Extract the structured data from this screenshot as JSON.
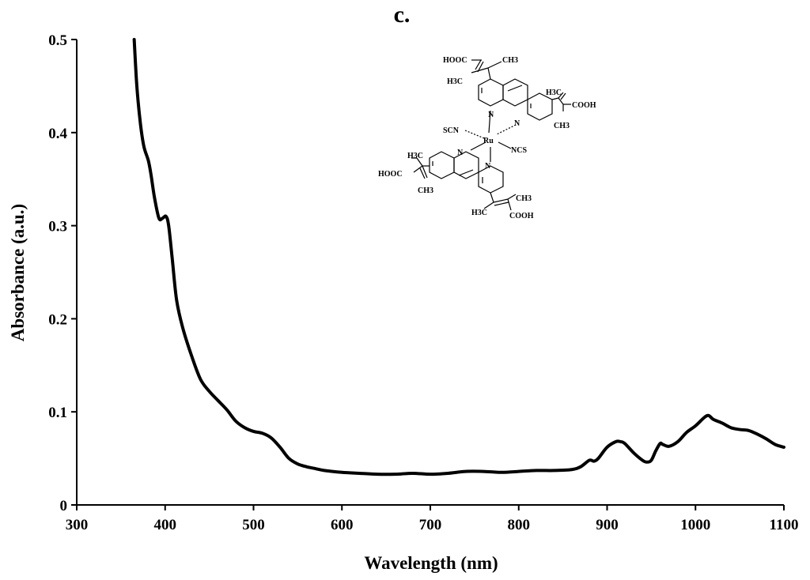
{
  "panel_label": "c.",
  "chart_data": {
    "type": "line",
    "title": "",
    "xlabel": "Wavelength (nm)",
    "ylabel": "Absorbance (a.u.)",
    "xlim": [
      300,
      1100
    ],
    "ylim": [
      0,
      0.5
    ],
    "x_ticks": [
      300,
      400,
      500,
      600,
      700,
      800,
      900,
      1000,
      1100
    ],
    "y_ticks": [
      0,
      0.1,
      0.2,
      0.3,
      0.4,
      0.5
    ],
    "y_tick_labels": [
      "0",
      "0.1",
      "0.2",
      "0.3",
      "0.4",
      "0.5"
    ],
    "grid": false,
    "legend": "none",
    "series": [
      {
        "color": "#000000",
        "x": [
          365,
          368,
          372,
          376,
          381,
          384,
          388,
          393,
          397,
          401,
          404,
          408,
          413,
          420,
          430,
          440,
          450,
          460,
          470,
          480,
          490,
          500,
          510,
          520,
          530,
          540,
          550,
          560,
          570,
          580,
          600,
          620,
          640,
          660,
          680,
          700,
          720,
          740,
          760,
          780,
          800,
          820,
          840,
          860,
          870,
          880,
          885,
          890,
          900,
          910,
          915,
          920,
          930,
          940,
          945,
          950,
          955,
          960,
          963,
          970,
          980,
          990,
          1000,
          1010,
          1015,
          1020,
          1030,
          1040,
          1050,
          1060,
          1070,
          1080,
          1090,
          1100
        ],
        "y": [
          0.5,
          0.45,
          0.41,
          0.385,
          0.37,
          0.355,
          0.33,
          0.308,
          0.308,
          0.31,
          0.3,
          0.265,
          0.22,
          0.19,
          0.16,
          0.135,
          0.122,
          0.112,
          0.102,
          0.09,
          0.083,
          0.079,
          0.077,
          0.072,
          0.062,
          0.05,
          0.044,
          0.041,
          0.039,
          0.037,
          0.035,
          0.034,
          0.033,
          0.033,
          0.034,
          0.033,
          0.034,
          0.036,
          0.036,
          0.035,
          0.036,
          0.037,
          0.037,
          0.038,
          0.041,
          0.048,
          0.047,
          0.05,
          0.062,
          0.068,
          0.068,
          0.066,
          0.056,
          0.048,
          0.046,
          0.048,
          0.058,
          0.066,
          0.065,
          0.063,
          0.068,
          0.078,
          0.085,
          0.094,
          0.096,
          0.092,
          0.088,
          0.083,
          0.081,
          0.08,
          0.076,
          0.071,
          0.065,
          0.062
        ]
      }
    ]
  },
  "molecule_labels": {
    "hooc_top": "HOOC",
    "ch3_top": "CH3",
    "h3c_top": "H3C",
    "h3c_right": "H3C",
    "cooh_right": "COOH",
    "ch3_right": "CH3",
    "scn": "SCN",
    "ru": "Ru",
    "ncs": "NCS",
    "n_tl": "N",
    "n_tr": "N",
    "n_bl": "N",
    "n_br": "N",
    "h3c_left": "H3C",
    "hooc_left": "HOOC",
    "ch3_left": "CH3",
    "ch3_bottom": "CH3",
    "h3c_bottom": "H3C",
    "cooh_bottom": "COOH"
  }
}
